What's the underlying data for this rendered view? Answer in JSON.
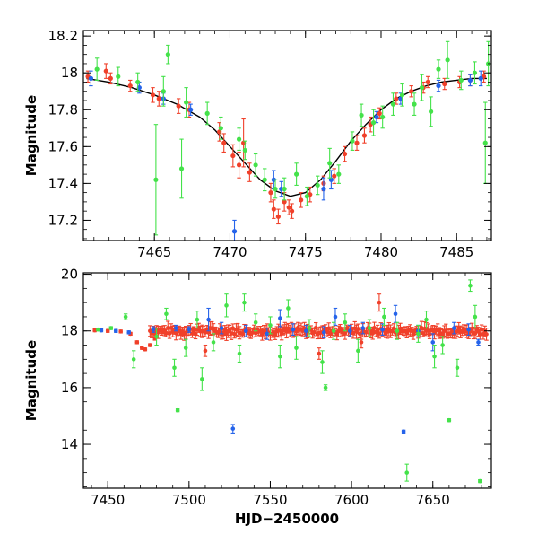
{
  "colors": {
    "red": "#f0402a",
    "blue": "#2563ea",
    "green": "#44e24a",
    "model": "#000000"
  },
  "chart_data": [
    {
      "type": "scatter",
      "panel": "top",
      "title": "",
      "xlabel": "",
      "ylabel": "Magnitude",
      "xlim": [
        7460.3,
        7487.3
      ],
      "ylim": [
        18.23,
        17.09
      ],
      "y_inverted": true,
      "grid": false,
      "x_ticks": [
        7465,
        7470,
        7475,
        7480,
        7485
      ],
      "x_tick_labels": [
        "7465",
        "7470",
        "7475",
        "7480",
        "7485"
      ],
      "y_ticks": [
        17.2,
        17.4,
        17.6,
        17.8,
        18,
        18.2
      ],
      "y_tick_labels": [
        "17.2",
        "17.4",
        "17.6",
        "17.8",
        "18",
        "18.2"
      ],
      "model_curve": {
        "color": "#000000",
        "x": [
          7460.5,
          7462,
          7463.5,
          7465,
          7466.5,
          7468,
          7469,
          7470,
          7471,
          7472,
          7473,
          7474,
          7475,
          7476,
          7477,
          7478,
          7479,
          7480,
          7481,
          7482,
          7483,
          7484,
          7485,
          7486,
          7487
        ],
        "y": [
          17.97,
          17.95,
          17.92,
          17.88,
          17.83,
          17.76,
          17.69,
          17.6,
          17.51,
          17.42,
          17.36,
          17.33,
          17.35,
          17.42,
          17.52,
          17.63,
          17.72,
          17.8,
          17.86,
          17.9,
          17.93,
          17.95,
          17.96,
          17.97,
          17.97
        ]
      },
      "series": [
        {
          "color": "red",
          "x": [
            7460.6,
            7461.8,
            7462.1,
            7463.4,
            7464.9,
            7465.3,
            7466.6,
            7467.3,
            7469.3,
            7469.6,
            7470.2,
            7470.6,
            7470.9,
            7471.3,
            7472.7,
            7472.9,
            7473.2,
            7473.6,
            7473.9,
            7474.1,
            7474.7,
            7475.3,
            7476.2,
            7476.9,
            7477.6,
            7478.4,
            7478.9,
            7479.3,
            7479.9,
            7481.0,
            7482.0,
            7482.8,
            7483.1,
            7484.2,
            7485.2,
            7485.9,
            7486.8
          ],
          "y": [
            17.98,
            18.01,
            17.97,
            17.93,
            17.88,
            17.86,
            17.82,
            17.8,
            17.68,
            17.62,
            17.55,
            17.5,
            17.62,
            17.46,
            17.35,
            17.26,
            17.22,
            17.3,
            17.27,
            17.25,
            17.31,
            17.34,
            17.4,
            17.44,
            17.56,
            17.62,
            17.66,
            17.72,
            17.78,
            17.86,
            17.9,
            17.92,
            17.95,
            17.94,
            17.95,
            17.96,
            17.98
          ],
          "err": [
            0.03,
            0.04,
            0.03,
            0.03,
            0.04,
            0.04,
            0.04,
            0.04,
            0.05,
            0.05,
            0.06,
            0.07,
            0.13,
            0.05,
            0.05,
            0.05,
            0.04,
            0.05,
            0.04,
            0.04,
            0.04,
            0.04,
            0.04,
            0.04,
            0.04,
            0.04,
            0.04,
            0.04,
            0.03,
            0.03,
            0.03,
            0.03,
            0.03,
            0.03,
            0.03,
            0.03,
            0.03
          ]
        },
        {
          "color": "blue",
          "x": [
            7460.8,
            7464.0,
            7465.6,
            7467.4,
            7470.3,
            7472.9,
            7473.4,
            7476.2,
            7476.7,
            7479.7,
            7481.3,
            7483.8,
            7485.9,
            7486.6
          ],
          "y": [
            17.97,
            17.92,
            17.86,
            17.8,
            17.14,
            17.42,
            17.37,
            17.37,
            17.42,
            17.76,
            17.86,
            17.93,
            17.96,
            17.97
          ],
          "err": [
            0.04,
            0.03,
            0.03,
            0.03,
            0.06,
            0.05,
            0.04,
            0.06,
            0.05,
            0.03,
            0.03,
            0.03,
            0.03,
            0.04
          ]
        },
        {
          "color": "green",
          "x": [
            7461.2,
            7462.6,
            7463.9,
            7465.1,
            7465.6,
            7465.9,
            7466.8,
            7467.1,
            7468.5,
            7469.4,
            7470.6,
            7471.0,
            7471.7,
            7472.3,
            7473.0,
            7473.6,
            7474.4,
            7475.1,
            7475.8,
            7476.6,
            7477.2,
            7478.1,
            7478.7,
            7479.5,
            7480.1,
            7480.8,
            7481.4,
            7482.2,
            7482.7,
            7483.3,
            7483.8,
            7484.4,
            7485.3,
            7486.2,
            7486.9,
            7487.1
          ],
          "y": [
            18.02,
            17.98,
            17.95,
            17.42,
            17.9,
            18.1,
            17.48,
            17.84,
            17.78,
            17.7,
            17.64,
            17.58,
            17.5,
            17.42,
            17.37,
            17.37,
            17.45,
            17.33,
            17.39,
            17.51,
            17.45,
            17.63,
            17.77,
            17.73,
            17.76,
            17.83,
            17.88,
            17.83,
            17.92,
            17.79,
            18.02,
            18.07,
            17.96,
            18.0,
            17.62,
            18.05
          ],
          "err": [
            0.06,
            0.05,
            0.05,
            0.3,
            0.08,
            0.05,
            0.16,
            0.08,
            0.06,
            0.06,
            0.06,
            0.05,
            0.06,
            0.06,
            0.05,
            0.06,
            0.06,
            0.05,
            0.05,
            0.08,
            0.05,
            0.05,
            0.06,
            0.07,
            0.06,
            0.06,
            0.06,
            0.06,
            0.07,
            0.08,
            0.05,
            0.1,
            0.05,
            0.06,
            0.22,
            0.12
          ]
        }
      ]
    },
    {
      "type": "scatter",
      "panel": "bottom",
      "title": "",
      "xlabel": "HJD−2450000",
      "ylabel": "Magnitude",
      "xlim": [
        7435,
        7686
      ],
      "ylim": [
        20.05,
        12.45
      ],
      "y_inverted": true,
      "grid": false,
      "x_ticks": [
        7450,
        7500,
        7550,
        7600,
        7650
      ],
      "x_tick_labels": [
        "7450",
        "7500",
        "7550",
        "7600",
        "7650"
      ],
      "y_ticks": [
        14,
        16,
        18,
        20
      ],
      "y_tick_labels": [
        "14",
        "16",
        "18",
        "20"
      ],
      "series": [
        {
          "color": "red",
          "x": [
            7442,
            7450,
            7458,
            7464,
            7468,
            7471,
            7473,
            7476,
            7479,
            7484,
            7490,
            7496,
            7503,
            7510,
            7516,
            7522,
            7530,
            7537,
            7545,
            7552,
            7558,
            7566,
            7573,
            7580,
            7586,
            7594,
            7600,
            7606,
            7613,
            7617,
            7622,
            7630,
            7638,
            7646,
            7654,
            7662,
            7670,
            7677
          ],
          "y": [
            18.02,
            18.0,
            17.98,
            17.9,
            17.6,
            17.4,
            17.35,
            17.5,
            17.75,
            17.95,
            18.0,
            17.95,
            18.05,
            17.3,
            18.0,
            17.98,
            18.05,
            18.0,
            17.95,
            17.9,
            18.02,
            17.98,
            18.05,
            17.2,
            17.95,
            18.0,
            18.02,
            17.6,
            18.0,
            19.0,
            18.05,
            17.98,
            17.95,
            18.0,
            18.02,
            18.0,
            17.98,
            18.03
          ],
          "err": [
            0.05,
            0.05,
            0.05,
            0.05,
            0.05,
            0.05,
            0.05,
            0.05,
            0.05,
            0.05,
            0.1,
            0.1,
            0.1,
            0.2,
            0.1,
            0.1,
            0.1,
            0.1,
            0.1,
            0.1,
            0.1,
            0.1,
            0.1,
            0.2,
            0.1,
            0.1,
            0.1,
            0.2,
            0.1,
            0.3,
            0.1,
            0.1,
            0.1,
            0.1,
            0.1,
            0.1,
            0.1,
            0.1
          ]
        },
        {
          "color": "blue",
          "x": [
            7446,
            7455,
            7463,
            7478,
            7492,
            7500,
            7512,
            7520,
            7527,
            7535,
            7548,
            7556,
            7564,
            7572,
            7583,
            7590,
            7599,
            7607,
            7619,
            7627,
            7632,
            7641,
            7650,
            7663,
            7672,
            7678
          ],
          "y": [
            18.02,
            18.0,
            17.95,
            18.05,
            18.1,
            18.05,
            18.4,
            18.1,
            14.55,
            18.0,
            17.9,
            18.45,
            18.05,
            18.0,
            17.95,
            18.5,
            18.0,
            18.1,
            18.05,
            18.6,
            14.45,
            18.0,
            17.6,
            18.1,
            18.05,
            17.6
          ],
          "err": [
            0.05,
            0.05,
            0.05,
            0.1,
            0.1,
            0.1,
            0.4,
            0.2,
            0.15,
            0.2,
            0.2,
            0.3,
            0.2,
            0.2,
            0.2,
            0.3,
            0.2,
            0.2,
            0.2,
            0.3,
            0.05,
            0.2,
            0.3,
            0.2,
            0.2,
            0.1
          ]
        },
        {
          "color": "green",
          "x": [
            7444,
            7452,
            7461,
            7466,
            7480,
            7486,
            7491,
            7493,
            7498,
            7505,
            7508,
            7515,
            7523,
            7531,
            7534,
            7541,
            7550,
            7556,
            7561,
            7566,
            7574,
            7582,
            7584,
            7589,
            7596,
            7604,
            7611,
            7620,
            7628,
            7634,
            7641,
            7646,
            7651,
            7656,
            7660,
            7665,
            7673,
            7676,
            7679
          ],
          "y": [
            18.05,
            18.1,
            18.5,
            17.0,
            17.8,
            18.6,
            16.7,
            15.2,
            17.4,
            18.4,
            16.3,
            17.6,
            18.9,
            17.2,
            19.0,
            18.3,
            18.2,
            17.1,
            18.8,
            17.4,
            18.1,
            16.9,
            16.0,
            18.0,
            18.3,
            17.3,
            18.1,
            18.5,
            18.0,
            13.0,
            17.9,
            18.4,
            17.1,
            17.5,
            14.85,
            16.7,
            19.6,
            18.5,
            12.7
          ],
          "err": [
            0.05,
            0.05,
            0.1,
            0.3,
            0.3,
            0.2,
            0.3,
            0.05,
            0.3,
            0.3,
            0.4,
            0.3,
            0.4,
            0.3,
            0.3,
            0.3,
            0.3,
            0.4,
            0.3,
            0.4,
            0.3,
            0.4,
            0.1,
            0.3,
            0.3,
            0.4,
            0.3,
            0.3,
            0.3,
            0.3,
            0.3,
            0.3,
            0.4,
            0.3,
            0.05,
            0.3,
            0.2,
            0.4,
            0.05
          ]
        },
        {
          "color": "red",
          "band": true,
          "x_range": [
            7476,
            7683
          ],
          "y_center": 18.0,
          "spread": 0.12
        }
      ]
    }
  ]
}
